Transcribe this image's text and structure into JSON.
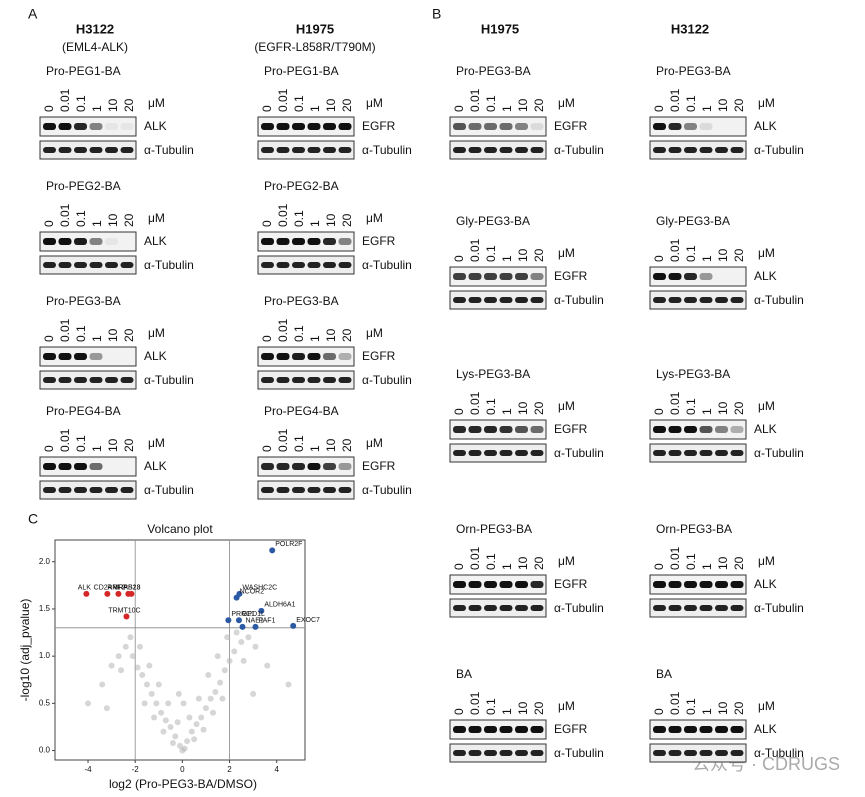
{
  "doses": [
    "0",
    "0.01",
    "0.1",
    "1",
    "10",
    "20"
  ],
  "unit": "μM",
  "loading": "α-Tubulin",
  "panel_a": {
    "label": "A",
    "columns": [
      {
        "header": "H3122",
        "subheader": "(EML4-ALK)",
        "blocks": [
          {
            "title": "Pro-PEG1-BA",
            "target": "ALK",
            "bands": [
              1,
              1,
              0.9,
              0.5,
              0.05,
              0.05
            ]
          },
          {
            "title": "Pro-PEG2-BA",
            "target": "ALK",
            "bands": [
              1,
              1,
              0.95,
              0.5,
              0.05,
              0
            ]
          },
          {
            "title": "Pro-PEG3-BA",
            "target": "ALK",
            "bands": [
              1,
              1,
              1,
              0.4,
              0,
              0
            ]
          },
          {
            "title": "Pro-PEG4-BA",
            "target": "ALK",
            "bands": [
              1,
              1,
              1,
              0.6,
              0,
              0
            ]
          }
        ]
      },
      {
        "header": "H1975",
        "subheader": "(EGFR-L858R/T790M)",
        "blocks": [
          {
            "title": "Pro-PEG1-BA",
            "target": "EGFR",
            "bands": [
              1,
              1,
              1,
              1,
              1,
              1
            ]
          },
          {
            "title": "Pro-PEG2-BA",
            "target": "EGFR",
            "bands": [
              1,
              1,
              1,
              1,
              0.9,
              0.5
            ]
          },
          {
            "title": "Pro-PEG3-BA",
            "target": "EGFR",
            "bands": [
              1,
              1,
              0.95,
              1,
              0.6,
              0.3
            ]
          },
          {
            "title": "Pro-PEG4-BA",
            "target": "EGFR",
            "bands": [
              0.9,
              0.9,
              0.9,
              1,
              0.8,
              0.4
            ]
          }
        ]
      }
    ]
  },
  "panel_b": {
    "label": "B",
    "columns": [
      {
        "header": "H1975",
        "blocks": [
          {
            "title": "Pro-PEG3-BA",
            "target": "EGFR",
            "bands": [
              0.7,
              0.6,
              0.6,
              0.6,
              0.5,
              0.1
            ]
          },
          {
            "title": "Gly-PEG3-BA",
            "target": "EGFR",
            "bands": [
              0.8,
              0.8,
              0.8,
              0.8,
              0.8,
              0.5
            ]
          },
          {
            "title": "Lys-PEG3-BA",
            "target": "EGFR",
            "bands": [
              0.9,
              0.9,
              0.9,
              0.85,
              0.7,
              0.6
            ]
          },
          {
            "title": "Orn-PEG3-BA",
            "target": "EGFR",
            "bands": [
              1,
              1,
              1,
              1,
              1,
              0.9
            ]
          },
          {
            "title": "BA",
            "target": "EGFR",
            "bands": [
              1,
              1,
              1,
              1,
              1,
              1
            ]
          }
        ]
      },
      {
        "header": "H3122",
        "blocks": [
          {
            "title": "Pro-PEG3-BA",
            "target": "ALK",
            "bands": [
              1,
              0.9,
              0.5,
              0.1,
              0,
              0
            ]
          },
          {
            "title": "Gly-PEG3-BA",
            "target": "ALK",
            "bands": [
              1,
              1,
              0.9,
              0.4,
              0,
              0
            ]
          },
          {
            "title": "Lys-PEG3-BA",
            "target": "ALK",
            "bands": [
              1,
              1,
              1,
              0.7,
              0.5,
              0.3
            ]
          },
          {
            "title": "Orn-PEG3-BA",
            "target": "ALK",
            "bands": [
              1,
              1,
              1,
              1,
              1,
              1
            ]
          },
          {
            "title": "BA",
            "target": "ALK",
            "bands": [
              1,
              1,
              1,
              1,
              1,
              1
            ]
          }
        ]
      }
    ]
  },
  "chart_data": {
    "type": "scatter",
    "panel_label": "C",
    "title": "Volcano plot",
    "x_label": "log2 (Pro-PEG3-BA/DMSO)",
    "y_label": "-log10 (adj_pvalue)",
    "xlim": [
      -5.4,
      5.2
    ],
    "ylim": [
      -0.1,
      2.23
    ],
    "xticks": [
      -4,
      -2,
      0,
      2,
      4
    ],
    "yticks": [
      {
        "value": 0,
        "label": "0.0"
      },
      0.5,
      {
        "value": 1,
        "label": "1.0"
      },
      1.5,
      {
        "value": 2,
        "label": "2.0"
      }
    ],
    "hlines": [
      1.3
    ],
    "vlines": [
      -2,
      2
    ],
    "series": [
      {
        "color": "#b5b5b5",
        "x": [
          -0.1,
          0.2,
          -0.3,
          0.4,
          -0.5,
          0.6,
          -0.7,
          0.8,
          -0.9,
          1.0,
          -1.1,
          1.2,
          -1.3,
          1.4,
          -1.5,
          1.6,
          -1.7,
          1.8,
          -1.9,
          2.0,
          -2.1,
          2.2,
          -2.4,
          2.5,
          -2.7,
          2.8,
          -3.0,
          3.1,
          -3.4,
          3.6,
          -0.2,
          0.3,
          -0.6,
          0.7,
          -1.0,
          1.1,
          -1.4,
          1.5,
          -1.8,
          1.9,
          0.0,
          0.1,
          -0.4,
          0.5,
          -0.8,
          0.9,
          -1.2,
          1.3,
          -1.6,
          1.7,
          2.3,
          -2.2,
          2.6,
          -2.6,
          3.0,
          -3.2,
          0.05,
          -0.15,
          4.5,
          -4.0
        ],
        "values": [
          0.05,
          0.1,
          0.15,
          0.2,
          0.25,
          0.28,
          0.32,
          0.35,
          0.4,
          0.45,
          0.5,
          0.55,
          0.6,
          0.62,
          0.7,
          0.72,
          0.8,
          0.85,
          0.88,
          0.95,
          1.0,
          1.05,
          1.1,
          1.15,
          1.0,
          1.2,
          0.9,
          1.1,
          0.7,
          0.9,
          0.3,
          0.35,
          0.5,
          0.55,
          0.7,
          0.8,
          0.9,
          1.0,
          1.1,
          1.2,
          0.0,
          0.02,
          0.08,
          0.12,
          0.2,
          0.22,
          0.35,
          0.4,
          0.5,
          0.55,
          1.25,
          1.2,
          0.95,
          0.85,
          0.6,
          0.45,
          0.5,
          0.6,
          0.7,
          0.5
        ]
      },
      {
        "color": "#d62728",
        "x": [
          -4.07,
          -3.18,
          -2.71,
          -2.29,
          -2.16,
          -2.37
        ],
        "values": [
          1.66,
          1.66,
          1.66,
          1.66,
          1.66,
          1.42
        ],
        "labels": [
          "ALK",
          "CD2AP",
          "RNF2",
          "MRPS23",
          "RAB18",
          "TRMT10C"
        ]
      },
      {
        "color": "#2b59a3",
        "x": [
          3.81,
          2.42,
          2.3,
          3.35,
          1.95,
          2.4,
          4.7,
          2.55,
          3.1
        ],
        "values": [
          2.12,
          1.66,
          1.62,
          1.48,
          1.38,
          1.38,
          1.32,
          1.31,
          1.31
        ],
        "labels": [
          "POLR2F",
          "WASHC2C",
          "NCOR2",
          "ALDH6A1",
          "PRRC1",
          "GPD1L",
          "EXOC7",
          "NAE1",
          "PAF1"
        ]
      }
    ]
  },
  "watermark": "公众号 · CDRUGS"
}
